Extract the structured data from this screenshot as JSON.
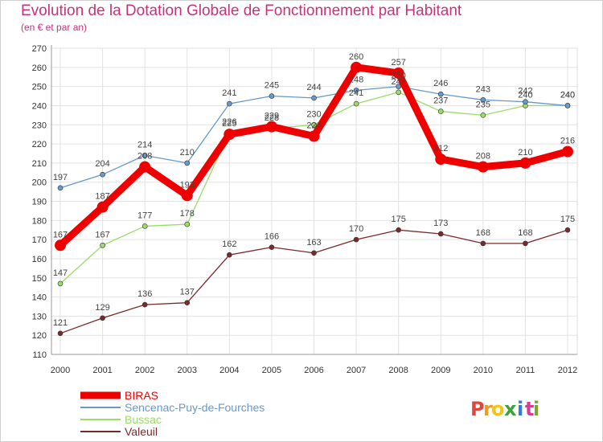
{
  "title": "Evolution de la Dotation Globale de Fonctionnement par Habitant",
  "subtitle": "(en € et par an)",
  "logo": {
    "text": "Proxiti",
    "letters": [
      "P",
      "r",
      "o",
      "x",
      "i",
      "t",
      "i"
    ],
    "colors": [
      "#e0473b",
      "#f29a1d",
      "#f2c21d",
      "#3aa33a",
      "#2d7fd0",
      "#d63c8f",
      "#7aa82a"
    ]
  },
  "chart_data": {
    "type": "line",
    "x": [
      "2000",
      "2001",
      "2002",
      "2003",
      "2004",
      "2005",
      "2006",
      "2007",
      "2008",
      "2009",
      "2010",
      "2011",
      "2012"
    ],
    "ylim": [
      110,
      270
    ],
    "yticks": [
      110,
      120,
      130,
      140,
      150,
      160,
      170,
      180,
      190,
      200,
      210,
      220,
      230,
      240,
      250,
      260,
      270
    ],
    "grid": true,
    "legend_position": "bottom-left",
    "series": [
      {
        "name": "BIRAS",
        "color": "#ee0000",
        "values": [
          167,
          187,
          208,
          193,
          225,
          229,
          224,
          260,
          257,
          212,
          208,
          210,
          216
        ],
        "labels": [
          "167",
          "187",
          "208",
          "193",
          "225",
          "229",
          "224",
          "260",
          "257",
          "212",
          "208",
          "210",
          "216"
        ],
        "width": 9,
        "marker": 7
      },
      {
        "name": "Sencenac-Puy-de-Fourches",
        "color": "#6699cc",
        "values": [
          197,
          204,
          214,
          210,
          241,
          245,
          244,
          248,
          250,
          246,
          243,
          242,
          240
        ],
        "labels": [
          "197",
          "204",
          "214",
          "210",
          "241",
          "245",
          "244",
          "248",
          "250",
          "246",
          "243",
          "242",
          "240"
        ],
        "width": 1.3,
        "marker": 3
      },
      {
        "name": "Bussac",
        "color": "#99dd66",
        "values": [
          147,
          167,
          177,
          178,
          226,
          228,
          230,
          241,
          247,
          237,
          235,
          240,
          240
        ],
        "labels": [
          "147",
          "167",
          "177",
          "178",
          "226",
          "228",
          "230",
          "241",
          "247",
          "237",
          "235",
          "240",
          "240"
        ],
        "width": 1.3,
        "marker": 3
      },
      {
        "name": "Valeuil",
        "color": "#7a2a2a",
        "values": [
          121,
          129,
          136,
          137,
          162,
          166,
          163,
          170,
          175,
          173,
          168,
          168,
          175
        ],
        "labels": [
          "121",
          "129",
          "136",
          "137",
          "162",
          "166",
          "163",
          "170",
          "175",
          "173",
          "168",
          "168",
          "175"
        ],
        "width": 1.3,
        "marker": 3
      }
    ]
  }
}
